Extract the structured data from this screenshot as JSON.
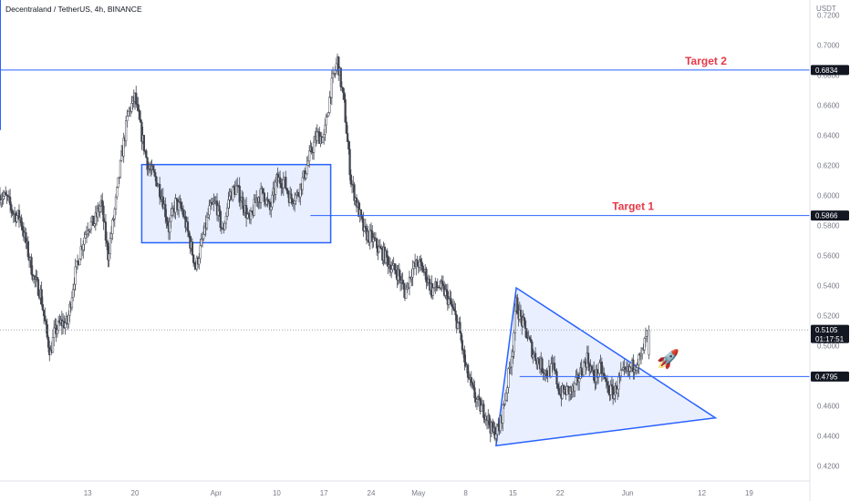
{
  "header": {
    "title": "Decentraland / TetherUS, 4h, BINANCE",
    "currency": "USDT"
  },
  "colors": {
    "candle": "#434651",
    "line": "#2962ff",
    "pattern_fill": "#2962ff",
    "label": "#e53946",
    "axis_text": "#787b86",
    "price_tag": "#131722"
  },
  "chart_data": {
    "type": "candlestick",
    "symbol": "Decentraland / TetherUS",
    "interval": "4h",
    "exchange": "BINANCE",
    "ylim": [
      0.41,
      0.73
    ],
    "y_ticks": [
      "0.7200",
      "0.7000",
      "0.6800",
      "0.6600",
      "0.6400",
      "0.6200",
      "0.6000",
      "0.5800",
      "0.5600",
      "0.5400",
      "0.5200",
      "0.5000",
      "0.4800",
      "0.4600",
      "0.4400",
      "0.4200"
    ],
    "x_ticks": [
      {
        "label": "13",
        "day": 13
      },
      {
        "label": "20",
        "day": 20
      },
      {
        "label": "Apr",
        "day": 32
      },
      {
        "label": "10",
        "day": 41
      },
      {
        "label": "17",
        "day": 48
      },
      {
        "label": "24",
        "day": 55
      },
      {
        "label": "May",
        "day": 62
      },
      {
        "label": "8",
        "day": 69
      },
      {
        "label": "15",
        "day": 76
      },
      {
        "label": "22",
        "day": 83
      },
      {
        "label": "Jun",
        "day": 93
      },
      {
        "label": "12",
        "day": 104
      },
      {
        "label": "19",
        "day": 111
      }
    ],
    "price_path": [
      [
        0,
        0.6
      ],
      [
        1,
        0.598
      ],
      [
        2,
        0.588
      ],
      [
        3,
        0.585
      ],
      [
        4,
        0.565
      ],
      [
        5,
        0.545
      ],
      [
        6,
        0.535
      ],
      [
        7,
        0.505
      ],
      [
        7.5,
        0.495
      ],
      [
        8,
        0.508
      ],
      [
        9,
        0.515
      ],
      [
        10,
        0.515
      ],
      [
        11,
        0.545
      ],
      [
        12,
        0.565
      ],
      [
        13,
        0.58
      ],
      [
        14,
        0.582
      ],
      [
        15,
        0.595
      ],
      [
        16,
        0.56
      ],
      [
        17,
        0.59
      ],
      [
        18,
        0.625
      ],
      [
        19,
        0.655
      ],
      [
        20,
        0.665
      ],
      [
        21,
        0.64
      ],
      [
        22,
        0.618
      ],
      [
        23,
        0.612
      ],
      [
        24,
        0.6
      ],
      [
        25,
        0.578
      ],
      [
        26,
        0.595
      ],
      [
        27,
        0.59
      ],
      [
        28,
        0.572
      ],
      [
        29,
        0.552
      ],
      [
        30,
        0.57
      ],
      [
        31,
        0.59
      ],
      [
        32,
        0.595
      ],
      [
        33,
        0.575
      ],
      [
        34,
        0.6
      ],
      [
        35,
        0.605
      ],
      [
        36,
        0.595
      ],
      [
        37,
        0.582
      ],
      [
        38,
        0.598
      ],
      [
        39,
        0.602
      ],
      [
        40,
        0.59
      ],
      [
        41,
        0.61
      ],
      [
        42,
        0.61
      ],
      [
        43,
        0.598
      ],
      [
        44,
        0.6
      ],
      [
        45,
        0.612
      ],
      [
        46,
        0.628
      ],
      [
        47,
        0.64
      ],
      [
        48,
        0.638
      ],
      [
        49,
        0.67
      ],
      [
        50,
        0.69
      ],
      [
        51,
        0.66
      ],
      [
        52,
        0.61
      ],
      [
        53,
        0.592
      ],
      [
        54,
        0.575
      ],
      [
        55,
        0.572
      ],
      [
        56,
        0.565
      ],
      [
        57,
        0.56
      ],
      [
        58,
        0.552
      ],
      [
        59,
        0.548
      ],
      [
        60,
        0.535
      ],
      [
        61,
        0.55
      ],
      [
        62,
        0.555
      ],
      [
        63,
        0.548
      ],
      [
        64,
        0.537
      ],
      [
        65,
        0.54
      ],
      [
        66,
        0.535
      ],
      [
        67,
        0.525
      ],
      [
        68,
        0.512
      ],
      [
        69,
        0.485
      ],
      [
        70,
        0.47
      ],
      [
        71,
        0.46
      ],
      [
        72,
        0.455
      ],
      [
        73,
        0.442
      ],
      [
        74,
        0.445
      ],
      [
        75,
        0.47
      ],
      [
        76,
        0.5
      ],
      [
        76.5,
        0.528
      ],
      [
        77,
        0.52
      ],
      [
        78,
        0.508
      ],
      [
        79,
        0.495
      ],
      [
        80,
        0.488
      ],
      [
        81,
        0.482
      ],
      [
        82,
        0.485
      ],
      [
        83,
        0.468
      ],
      [
        84,
        0.47
      ],
      [
        85,
        0.47
      ],
      [
        86,
        0.482
      ],
      [
        87,
        0.492
      ],
      [
        88,
        0.478
      ],
      [
        89,
        0.485
      ],
      [
        90,
        0.472
      ],
      [
        91,
        0.468
      ],
      [
        92,
        0.48
      ],
      [
        93,
        0.482
      ],
      [
        94,
        0.488
      ],
      [
        95,
        0.492
      ],
      [
        96,
        0.51
      ]
    ],
    "ranges": [
      {
        "day_start": 21,
        "day_end": 49,
        "y_top": 0.6205,
        "y_bottom": 0.5685
      }
    ],
    "triangles": [
      {
        "points": [
          [
            73.5,
            0.4335
          ],
          [
            76.5,
            0.5385
          ],
          [
            106,
            0.452
          ]
        ]
      }
    ],
    "horizontal_levels": [
      {
        "price": 0.6834,
        "price_label": "0.6834",
        "label": "Target 2",
        "style": "solid",
        "from_day": 0
      },
      {
        "price": 0.5866,
        "price_label": "0.5866",
        "label": "Target 1",
        "style": "solid",
        "from_day": 46
      },
      {
        "price": 0.4795,
        "price_label": "0.4795",
        "label": "",
        "style": "solid",
        "from_day": 77
      },
      {
        "price": 0.5105,
        "price_label": "0.5105",
        "label": "",
        "style": "dotted",
        "from_day": 0,
        "timer": "01:17:51"
      }
    ],
    "annotation": {
      "emoji": "🚀",
      "day": 99,
      "price": 0.487
    }
  }
}
